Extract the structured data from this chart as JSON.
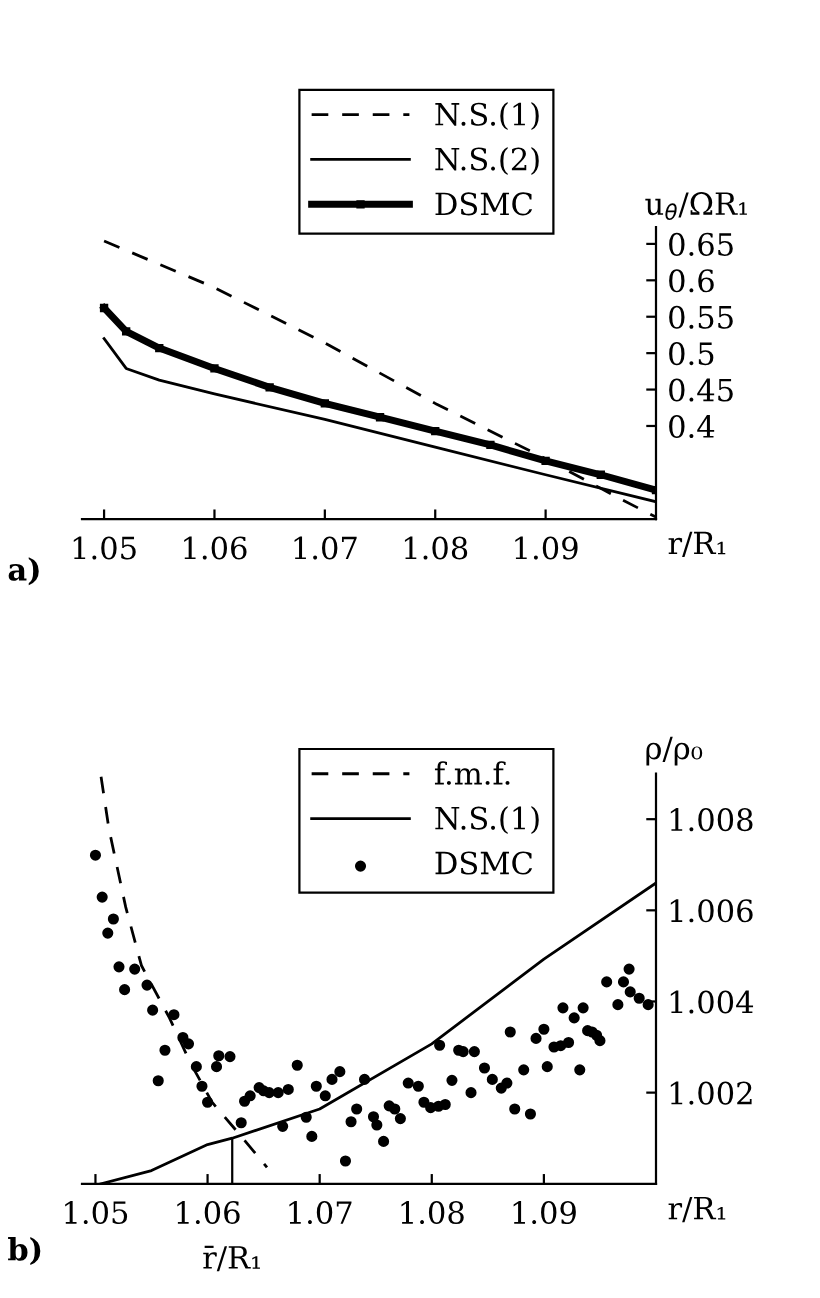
{
  "chart_data": [
    {
      "type": "line",
      "xlabel": "r/R₁",
      "ylabel": "u$_{θ}$/ΩR₁",
      "annotations": [
        "a)"
      ],
      "legend": "top",
      "xlim": [
        1.048,
        1.1
      ],
      "ylim": [
        0.272,
        0.673
      ],
      "xticks": [
        1.05,
        1.06,
        1.07,
        1.08,
        1.09
      ],
      "yticks": [
        0.4,
        0.45,
        0.5,
        0.55,
        0.6,
        0.65
      ],
      "series": [
        {
          "name": "N.S.(1)",
          "color": "#000000",
          "line_style": "dashed",
          "x": [
            1.05,
            1.06,
            1.07,
            1.08,
            1.09,
            1.097,
            1.1
          ],
          "values": [
            0.654,
            0.59,
            0.514,
            0.431,
            0.355,
            0.298,
            0.275
          ]
        },
        {
          "name": "N.S.(2)",
          "color": "#000000",
          "line_style": "solid",
          "x": [
            1.05,
            1.052,
            1.055,
            1.06,
            1.07,
            1.08,
            1.09,
            1.1
          ],
          "values": [
            0.52,
            0.479,
            0.463,
            0.444,
            0.409,
            0.371,
            0.333,
            0.296
          ]
        },
        {
          "name": "DSMC",
          "color": "#000000",
          "line_style": "solid",
          "marker": "square",
          "x": [
            1.05,
            1.052,
            1.055,
            1.06,
            1.065,
            1.07,
            1.075,
            1.08,
            1.085,
            1.09,
            1.095,
            1.1
          ],
          "values": [
            0.562,
            0.53,
            0.507,
            0.479,
            0.453,
            0.431,
            0.412,
            0.393,
            0.374,
            0.352,
            0.333,
            0.312
          ]
        }
      ]
    },
    {
      "type": "line",
      "xlabel": "r/R₁",
      "ylabel": "ρ/ρ₀",
      "annotations": [
        "b)"
      ],
      "legend": "top",
      "xlim": [
        1.0488,
        1.1
      ],
      "ylim": [
        1.0,
        1.009
      ],
      "xticks": [
        1.05,
        1.06,
        1.07,
        1.08,
        1.09
      ],
      "yticks": [
        1.002,
        1.004,
        1.006,
        1.008
      ],
      "ref_lines": [
        {
          "axis": "x",
          "value": 1.0622,
          "label": "r̄/R₁"
        }
      ],
      "series": [
        {
          "name": "f.m.f.",
          "color": "#000000",
          "line_style": "dashed",
          "x": [
            1.0505,
            1.0512,
            1.0527,
            1.0541,
            1.0566,
            1.0585,
            1.0604,
            1.0629,
            1.0653
          ],
          "values": [
            1.00893,
            1.00779,
            1.00607,
            1.00479,
            1.00364,
            1.00264,
            1.00179,
            1.00107,
            1.00036
          ]
        },
        {
          "name": "N.S.(1)",
          "color": "#000000",
          "line_style": "solid",
          "x": [
            1.0505,
            1.055,
            1.06,
            1.0622,
            1.07,
            1.08,
            1.09,
            1.1
          ],
          "values": [
            1.0,
            1.00029,
            1.00086,
            1.001,
            1.00164,
            1.00307,
            1.00493,
            1.0066
          ]
        },
        {
          "name": "DSMC",
          "color": "#000000",
          "type": "scatter",
          "marker": "circle",
          "x": [
            1.05,
            1.0506,
            1.0511,
            1.0516,
            1.0521,
            1.0526,
            1.0535,
            1.0546,
            1.0551,
            1.0562,
            1.0556,
            1.057,
            1.0578,
            1.0583,
            1.059,
            1.0595,
            1.06,
            1.0608,
            1.061,
            1.062,
            1.063,
            1.0633,
            1.0638,
            1.0646,
            1.065,
            1.0655,
            1.0663,
            1.0667,
            1.0672,
            1.068,
            1.0688,
            1.0693,
            1.0697,
            1.0705,
            1.0711,
            1.0718,
            1.0723,
            1.0728,
            1.0733,
            1.074,
            1.0748,
            1.0751,
            1.0757,
            1.0762,
            1.0767,
            1.0772,
            1.0779,
            1.0788,
            1.0793,
            1.0799,
            1.0806,
            1.0812,
            1.0807,
            1.0818,
            1.0824,
            1.0828,
            1.0835,
            1.0838,
            1.0847,
            1.0854,
            1.0862,
            1.0867,
            1.087,
            1.0874,
            1.0882,
            1.0888,
            1.0893,
            1.09,
            1.0903,
            1.0909,
            1.0915,
            1.0917,
            1.0922,
            1.0927,
            1.0932,
            1.0935,
            1.0939,
            1.0943,
            1.0947,
            1.095,
            1.0956,
            1.0966,
            1.0977,
            1.0985,
            1.0993,
            1.0971,
            1.0976
          ],
          "values": [
            1.00721,
            1.00629,
            1.0055,
            1.00581,
            1.00476,
            1.00426,
            1.00471,
            1.00436,
            1.00381,
            1.00293,
            1.00226,
            1.00371,
            1.00321,
            1.00307,
            1.00257,
            1.00214,
            1.00179,
            1.00257,
            1.00281,
            1.00279,
            1.00134,
            1.00181,
            1.00193,
            1.00211,
            1.00204,
            1.002,
            1.002,
            1.00126,
            1.00207,
            1.0026,
            1.00146,
            1.00104,
            1.00214,
            1.00193,
            1.00229,
            1.00246,
            1.0005,
            1.00136,
            1.00164,
            1.00229,
            1.00147,
            1.00129,
            1.00093,
            1.00171,
            1.00164,
            1.00143,
            1.00221,
            1.00214,
            1.00179,
            1.00167,
            1.0017,
            1.00174,
            1.00304,
            1.00227,
            1.00293,
            1.0029,
            1.002,
            1.0029,
            1.00254,
            1.00229,
            1.0021,
            1.00221,
            1.00333,
            1.00164,
            1.0025,
            1.00153,
            1.00319,
            1.00339,
            1.00257,
            1.003,
            1.00303,
            1.00386,
            1.0031,
            1.00364,
            1.0025,
            1.00386,
            1.00336,
            1.00333,
            1.00326,
            1.00314,
            1.00443,
            1.00393,
            1.00421,
            1.00407,
            1.00393,
            1.00443,
            1.00471
          ]
        }
      ]
    }
  ]
}
